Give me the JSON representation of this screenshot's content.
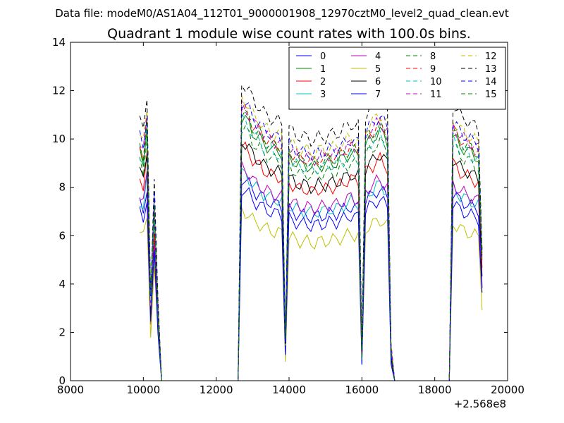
{
  "chart_data": {
    "type": "line",
    "suptitle": "Data file: modeM0/AS1A04_112T01_9000001908_12970cztM0_level2_quad_clean.evt",
    "title": "Quadrant 1 module wise count rates with 100.0s bins.",
    "xlabel": "",
    "ylabel": "",
    "x_offset_label": "+2.568e8",
    "xlim": [
      8000,
      20000
    ],
    "ylim": [
      0,
      14
    ],
    "xticks": [
      8000,
      10000,
      12000,
      14000,
      16000,
      18000,
      20000
    ],
    "xtick_labels": [
      "8000",
      "10000",
      "12000",
      "14000",
      "16000",
      "18000",
      "20000"
    ],
    "yticks": [
      0,
      2,
      4,
      6,
      8,
      10,
      12,
      14
    ],
    "ytick_labels": [
      "0",
      "2",
      "4",
      "6",
      "8",
      "10",
      "12",
      "14"
    ],
    "grid": false,
    "legend_position": "top-right",
    "legend_columns": 4,
    "segments": [
      {
        "x": [
          9900,
          10000,
          10100,
          10200,
          10300,
          10400,
          10500
        ],
        "base": [
          9.6,
          9.2,
          10.6,
          3.2,
          7.2,
          3.0,
          0.0
        ]
      },
      {
        "x": [
          10500,
          12600
        ],
        "base": [
          0.0,
          0.0
        ]
      },
      {
        "x": [
          12600,
          12700,
          12800,
          12900,
          13000,
          13100,
          13200,
          13300,
          13400,
          13500,
          13600,
          13700,
          13800,
          13900,
          14000,
          14100,
          14200,
          14300,
          14400,
          14500,
          14600,
          14700,
          14800,
          14900,
          15000,
          15100,
          15200,
          15300,
          15400,
          15500,
          15600,
          15700,
          15800,
          15900,
          16000,
          16100,
          16200,
          16300,
          16400,
          16500,
          16600,
          16700,
          16800,
          16900
        ],
        "base": [
          0.0,
          11.0,
          10.9,
          10.7,
          10.4,
          10.2,
          10.1,
          9.9,
          9.8,
          9.7,
          9.6,
          9.6,
          9.5,
          1.6,
          9.3,
          9.2,
          9.1,
          9.0,
          9.0,
          9.0,
          8.9,
          8.9,
          9.0,
          9.0,
          9.0,
          9.1,
          9.1,
          9.1,
          9.2,
          9.3,
          9.4,
          9.5,
          9.4,
          9.4,
          1.2,
          9.8,
          10.0,
          10.1,
          10.3,
          10.4,
          10.2,
          10.0,
          1.3,
          0.0
        ]
      },
      {
        "x": [
          16900,
          18400
        ],
        "base": [
          0.0,
          0.0
        ]
      },
      {
        "x": [
          18400,
          18500,
          18600,
          18700,
          18800,
          18900,
          19000,
          19100,
          19200,
          19300
        ],
        "base": [
          0.0,
          10.2,
          10.0,
          9.8,
          9.7,
          9.6,
          9.5,
          9.4,
          9.3,
          5.0
        ]
      }
    ],
    "series": [
      {
        "name": "0",
        "color": "#0000ff",
        "dash": false,
        "scale": 0.76
      },
      {
        "name": "1",
        "color": "#008000",
        "dash": false,
        "scale": 0.99
      },
      {
        "name": "2",
        "color": "#ff0000",
        "dash": false,
        "scale": 0.88
      },
      {
        "name": "3",
        "color": "#00bfbf",
        "dash": false,
        "scale": 0.78
      },
      {
        "name": "4",
        "color": "#bf00bf",
        "dash": false,
        "scale": 0.8
      },
      {
        "name": "5",
        "color": "#bfbf00",
        "dash": false,
        "scale": 0.64
      },
      {
        "name": "6",
        "color": "#000000",
        "dash": false,
        "scale": 0.9
      },
      {
        "name": "7",
        "color": "#0000ff",
        "dash": false,
        "scale": 0.72
      },
      {
        "name": "8",
        "color": "#008000",
        "dash": true,
        "scale": 0.95
      },
      {
        "name": "9",
        "color": "#ff0000",
        "dash": true,
        "scale": 1.02
      },
      {
        "name": "10",
        "color": "#00bfbf",
        "dash": true,
        "scale": 0.98
      },
      {
        "name": "11",
        "color": "#bf00bf",
        "dash": true,
        "scale": 1.03
      },
      {
        "name": "12",
        "color": "#bfbf00",
        "dash": true,
        "scale": 1.06
      },
      {
        "name": "13",
        "color": "#000000",
        "dash": true,
        "scale": 1.12
      },
      {
        "name": "14",
        "color": "#0000ff",
        "dash": true,
        "scale": 1.05
      },
      {
        "name": "15",
        "color": "#008000",
        "dash": true,
        "scale": 1.01
      }
    ]
  }
}
